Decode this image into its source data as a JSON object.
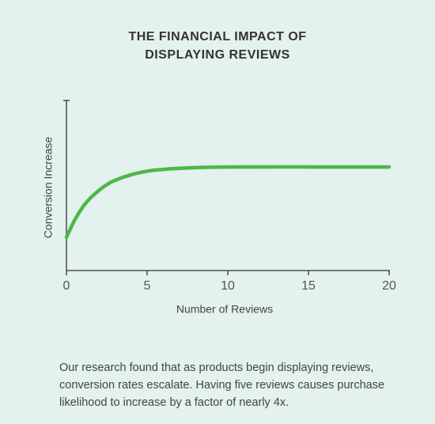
{
  "chart_data": {
    "type": "line",
    "title": [
      "THE FINANCIAL IMPACT OF",
      "DISPLAYING REVIEWS"
    ],
    "x_label": "Number of Reviews",
    "y_label": "Conversion Increase",
    "x": [
      0,
      0.5,
      1,
      1.5,
      2,
      2.5,
      3,
      4,
      5,
      6,
      8,
      10,
      15,
      20
    ],
    "series": [
      {
        "color": "#4fb748",
        "values": [
          0.195,
          0.295,
          0.372,
          0.428,
          0.47,
          0.505,
          0.53,
          0.563,
          0.584,
          0.595,
          0.605,
          0.609,
          0.609,
          0.609
        ]
      }
    ],
    "xlim": [
      0,
      20
    ],
    "xticks": [
      0,
      5,
      10,
      15,
      20
    ],
    "ylim": [
      0,
      1
    ],
    "notes": [
      "Our research found that as products begin displaying reviews,",
      "conversion rates escalate. Having five reviews causes purchase",
      "likelihood to increase by a factor of nearly 4x."
    ]
  }
}
